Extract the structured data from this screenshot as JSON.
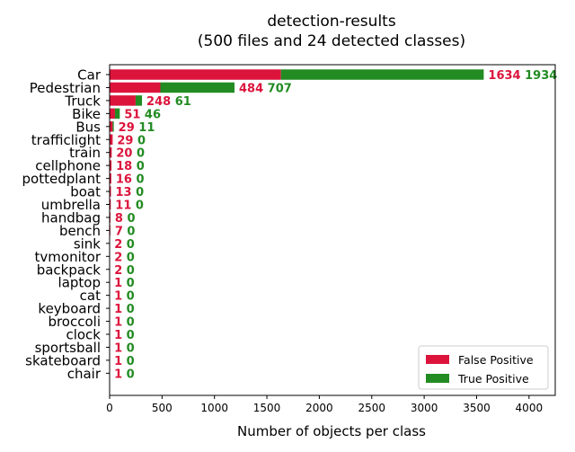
{
  "chart_data": {
    "type": "bar",
    "orientation": "horizontal",
    "stacked": true,
    "title": "detection-results",
    "subtitle": "(500 files and 24 detected classes)",
    "xlabel": "Number of objects per class",
    "ylabel": "",
    "xlim": [
      0,
      4250
    ],
    "xticks": [
      0,
      500,
      1000,
      1500,
      2000,
      2500,
      3000,
      3500,
      4000
    ],
    "grid": false,
    "legend_position": "bottom-right",
    "categories": [
      "Car",
      "Pedestrian",
      "Truck",
      "Bike",
      "Bus",
      "trafficlight",
      "train",
      "cellphone",
      "pottedplant",
      "boat",
      "umbrella",
      "handbag",
      "bench",
      "sink",
      "tvmonitor",
      "backpack",
      "laptop",
      "cat",
      "keyboard",
      "broccoli",
      "clock",
      "sportsball",
      "skateboard",
      "chair"
    ],
    "series": [
      {
        "name": "False Positive",
        "color": "#dc143c",
        "values": [
          1634,
          484,
          248,
          51,
          29,
          29,
          20,
          18,
          16,
          13,
          11,
          8,
          7,
          2,
          2,
          2,
          1,
          1,
          1,
          1,
          1,
          1,
          1,
          1
        ]
      },
      {
        "name": "True Positive",
        "color": "#228b22",
        "values": [
          1934,
          707,
          61,
          46,
          11,
          0,
          0,
          0,
          0,
          0,
          0,
          0,
          0,
          0,
          0,
          0,
          0,
          0,
          0,
          0,
          0,
          0,
          0,
          0
        ]
      }
    ]
  }
}
